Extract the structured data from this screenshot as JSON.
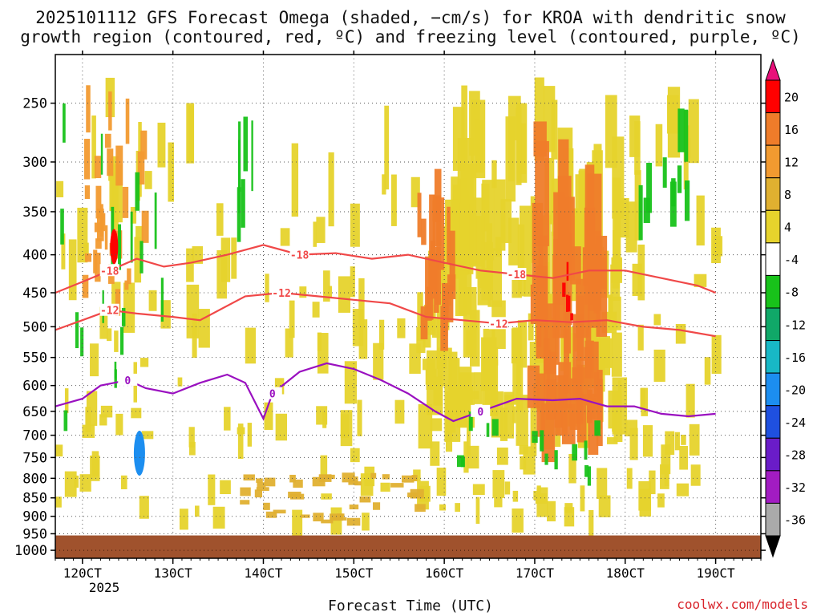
{
  "chart_data": {
    "type": "heatmap",
    "title_line1": "2025101112 GFS Forecast Omega (shaded, −cm/s) for KROA with dendritic snow",
    "title_line2": "growth region (contoured, red, ºC) and freezing level (contoured, purple, ºC)",
    "xlabel": "Forecast Time (UTC)",
    "ylabel": "",
    "credit": "coolwx.com/models",
    "year_label": "2025",
    "x_unit": "hours (valid time)",
    "xlim": [
      0,
      78
    ],
    "ylim": [
      1025,
      215
    ],
    "x_ticks": [
      {
        "label": "120CT",
        "x": 3
      },
      {
        "label": "130CT",
        "x": 13
      },
      {
        "label": "140CT",
        "x": 23
      },
      {
        "label": "150CT",
        "x": 33
      },
      {
        "label": "160CT",
        "x": 43
      },
      {
        "label": "170CT",
        "x": 53
      },
      {
        "label": "180CT",
        "x": 63
      },
      {
        "label": "190CT",
        "x": 73
      }
    ],
    "y_ticks": [
      250,
      300,
      350,
      400,
      450,
      500,
      550,
      600,
      650,
      700,
      750,
      800,
      850,
      900,
      950,
      1000
    ],
    "colorbar": {
      "levels": [
        "20",
        "16",
        "12",
        "8",
        "4",
        "-4",
        "-8",
        "-12",
        "-16",
        "-20",
        "-24",
        "-28",
        "-32",
        "-36"
      ],
      "colors": [
        "#ff0000",
        "#ef7c2a",
        "#f29a30",
        "#e0b030",
        "#e6d32c",
        "#ffffff",
        "#18c21a",
        "#10a868",
        "#18b8c6",
        "#1c8ef0",
        "#1f50e0",
        "#6a1cc8",
        "#a21cc2",
        "#aaaaaa"
      ],
      "top_color": "#e8107a",
      "bottom_color": "#000000"
    },
    "surface_color": "#a0522d",
    "surface_top_hPa": 955,
    "contours": [
      {
        "name": "-18C",
        "color": "#f04848",
        "label": "-18",
        "points": [
          [
            0,
            450
          ],
          [
            3,
            435
          ],
          [
            6,
            420
          ],
          [
            9,
            405
          ],
          [
            12,
            415
          ],
          [
            15,
            410
          ],
          [
            19,
            400
          ],
          [
            23,
            388
          ],
          [
            27,
            400
          ],
          [
            31,
            398
          ],
          [
            35,
            405
          ],
          [
            39,
            400
          ],
          [
            43,
            410
          ],
          [
            47,
            420
          ],
          [
            51,
            425
          ],
          [
            55,
            430
          ],
          [
            59,
            420
          ],
          [
            63,
            420
          ],
          [
            67,
            430
          ],
          [
            71,
            440
          ],
          [
            73,
            450
          ]
        ]
      },
      {
        "name": "-12C",
        "color": "#f04848",
        "label": "-12",
        "points": [
          [
            0,
            505
          ],
          [
            3,
            490
          ],
          [
            6,
            475
          ],
          [
            9,
            480
          ],
          [
            13,
            485
          ],
          [
            16,
            490
          ],
          [
            21,
            455
          ],
          [
            25,
            450
          ],
          [
            29,
            455
          ],
          [
            33,
            460
          ],
          [
            37,
            465
          ],
          [
            41,
            485
          ],
          [
            45,
            490
          ],
          [
            49,
            495
          ],
          [
            53,
            490
          ],
          [
            57,
            493
          ],
          [
            61,
            490
          ],
          [
            65,
            500
          ],
          [
            69,
            505
          ],
          [
            73,
            515
          ]
        ]
      },
      {
        "name": "0C",
        "color": "#9a10c0",
        "label": "0",
        "points": [
          [
            0,
            640
          ],
          [
            3,
            625
          ],
          [
            5,
            600
          ],
          [
            8,
            590
          ],
          [
            10,
            605
          ],
          [
            13,
            615
          ],
          [
            16,
            595
          ],
          [
            19,
            580
          ],
          [
            21,
            595
          ],
          [
            23,
            665
          ],
          [
            24,
            615
          ],
          [
            27,
            575
          ],
          [
            30,
            560
          ],
          [
            33,
            570
          ],
          [
            36,
            590
          ],
          [
            39,
            615
          ],
          [
            42,
            650
          ],
          [
            44,
            670
          ],
          [
            47,
            650
          ],
          [
            51,
            625
          ],
          [
            55,
            628
          ],
          [
            58,
            625
          ],
          [
            61,
            640
          ],
          [
            64,
            640
          ],
          [
            67,
            655
          ],
          [
            70,
            660
          ],
          [
            73,
            655
          ]
        ]
      }
    ]
  }
}
